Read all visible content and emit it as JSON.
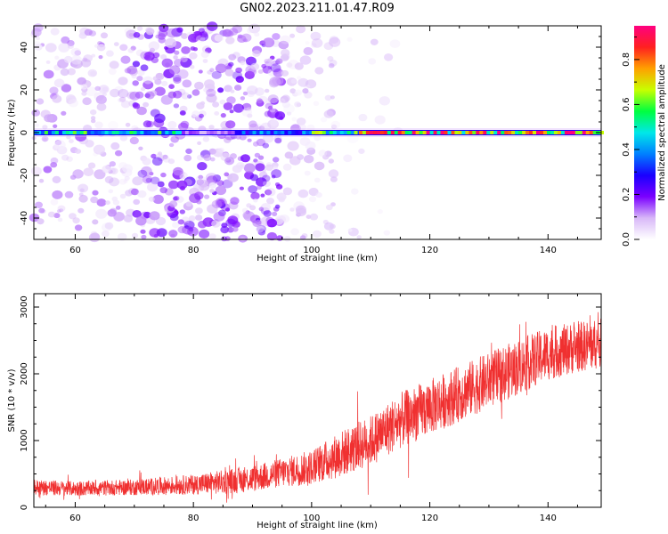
{
  "title": "GN02.2023.211.01.47.R09",
  "colors": {
    "snr_line": "#f03030",
    "frame": "#000000",
    "colormap": [
      "#ffffff",
      "#d8b8f8",
      "#7a00ff",
      "#1a00ff",
      "#0080ff",
      "#00e8e8",
      "#00ff40",
      "#c8ff00",
      "#ffa000",
      "#ff2020",
      "#ff0080"
    ]
  },
  "chart_data": [
    {
      "type": "heatmap",
      "xlabel": "Height of straight line (km)",
      "ylabel": "Frequency (Hz)",
      "xlim": [
        53,
        149
      ],
      "ylim": [
        -50,
        50
      ],
      "x_ticks": [
        60,
        80,
        100,
        120,
        140
      ],
      "y_ticks": [
        -40,
        -20,
        0,
        20,
        40
      ],
      "colorbar": {
        "label": "Normalized spectral amplitude",
        "range": [
          0.0,
          0.95
        ],
        "ticks": [
          "0.0",
          "0.2",
          "0.4",
          "0.6",
          "0.8"
        ],
        "tick_values": [
          0.0,
          0.2,
          0.4,
          0.6,
          0.8
        ]
      },
      "band": {
        "frequency_hz": 0,
        "segments": [
          {
            "x": [
              53,
              78
            ],
            "amplitude": 0.55
          },
          {
            "x": [
              78,
              87
            ],
            "amplitude": 0.15
          },
          {
            "x": [
              87,
              100
            ],
            "amplitude": 0.4
          },
          {
            "x": [
              100,
              108
            ],
            "amplitude": 0.6
          },
          {
            "x": [
              108,
              149
            ],
            "amplitude": 0.85
          }
        ]
      },
      "scatter_density": [
        {
          "x": [
            53,
            70
          ],
          "density": 0.55,
          "amplitude": 0.1
        },
        {
          "x": [
            70,
            95
          ],
          "density": 0.9,
          "amplitude": 0.15
        },
        {
          "x": [
            95,
            104
          ],
          "density": 0.5,
          "amplitude": 0.08
        },
        {
          "x": [
            104,
            115
          ],
          "density": 0.08,
          "amplitude": 0.05
        }
      ]
    },
    {
      "type": "line",
      "xlabel": "Height of straight line (km)",
      "ylabel": "SNR (10 * v/v)",
      "xlim": [
        53,
        149
      ],
      "ylim": [
        0,
        3200
      ],
      "x_ticks": [
        60,
        80,
        100,
        120,
        140
      ],
      "y_ticks": [
        0,
        1000,
        2000,
        3000
      ],
      "series": [
        {
          "x": [
            53,
            60,
            70,
            80,
            85,
            90,
            95,
            100,
            105,
            110,
            115,
            120,
            125,
            130,
            135,
            140,
            145,
            149
          ],
          "mean": [
            300,
            280,
            300,
            340,
            380,
            430,
            520,
            600,
            800,
            1000,
            1300,
            1500,
            1700,
            1900,
            2100,
            2300,
            2400,
            2450
          ],
          "spread": [
            120,
            110,
            120,
            150,
            180,
            200,
            220,
            260,
            350,
            380,
            420,
            420,
            420,
            420,
            420,
            400,
            380,
            380
          ]
        }
      ]
    }
  ]
}
